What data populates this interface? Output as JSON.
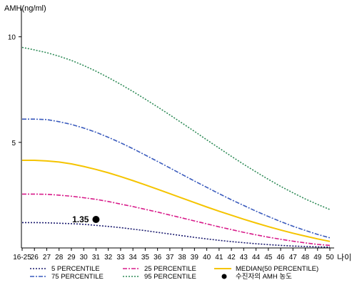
{
  "chart_data": {
    "type": "line",
    "ylabel": "AMH(ng/ml)",
    "xlabel": "나이",
    "y_ticks": [
      5,
      10
    ],
    "ylim": [
      0,
      11
    ],
    "grid": false,
    "legend_position": "bottom",
    "x": [
      "16-25",
      "26",
      "27",
      "28",
      "29",
      "30",
      "31",
      "32",
      "33",
      "34",
      "35",
      "36",
      "37",
      "38",
      "39",
      "40",
      "41",
      "42",
      "43",
      "44",
      "45",
      "46",
      "47",
      "48",
      "49",
      "50"
    ],
    "series": [
      {
        "name": "5 PERCENTILE",
        "color": "#1a1a6e",
        "dash": "2,2",
        "values": [
          1.2,
          1.2,
          1.19,
          1.17,
          1.15,
          1.12,
          1.07,
          1.02,
          0.96,
          0.89,
          0.82,
          0.74,
          0.66,
          0.58,
          0.5,
          0.43,
          0.36,
          0.3,
          0.25,
          0.2,
          0.16,
          0.12,
          0.09,
          0.07,
          0.05,
          0.04
        ]
      },
      {
        "name": "25 PERCENTILE",
        "color": "#d81b8a",
        "dash": "6,2,2,2",
        "values": [
          2.55,
          2.55,
          2.54,
          2.5,
          2.45,
          2.38,
          2.3,
          2.2,
          2.08,
          1.96,
          1.83,
          1.7,
          1.56,
          1.42,
          1.28,
          1.14,
          1.0,
          0.87,
          0.74,
          0.62,
          0.51,
          0.41,
          0.32,
          0.24,
          0.17,
          0.12
        ]
      },
      {
        "name": "MEDIAN(50 PERCENTILE)",
        "color": "#f5c400",
        "dash": "",
        "values": [
          4.15,
          4.15,
          4.12,
          4.07,
          3.98,
          3.86,
          3.72,
          3.56,
          3.38,
          3.19,
          2.99,
          2.78,
          2.57,
          2.36,
          2.15,
          1.94,
          1.74,
          1.55,
          1.36,
          1.18,
          1.01,
          0.85,
          0.7,
          0.56,
          0.43,
          0.31
        ]
      },
      {
        "name": "75 PERCENTILE",
        "color": "#3a5bbd",
        "dash": "6,2,2,2",
        "values": [
          6.1,
          6.1,
          6.08,
          5.98,
          5.85,
          5.68,
          5.48,
          5.24,
          4.98,
          4.7,
          4.4,
          4.1,
          3.79,
          3.48,
          3.17,
          2.87,
          2.57,
          2.28,
          2.01,
          1.74,
          1.49,
          1.25,
          1.03,
          0.83,
          0.64,
          0.48
        ]
      },
      {
        "name": "95 PERCENTILE",
        "color": "#2e8b57",
        "dash": "2,2",
        "values": [
          9.5,
          9.38,
          9.25,
          9.08,
          8.88,
          8.64,
          8.37,
          8.07,
          7.75,
          7.41,
          7.05,
          6.68,
          6.3,
          5.91,
          5.52,
          5.12,
          4.73,
          4.34,
          3.96,
          3.6,
          3.25,
          2.92,
          2.61,
          2.32,
          2.06,
          1.82
        ]
      }
    ],
    "marker": {
      "name": "수진자의 AMH 농도",
      "x": "31",
      "y": 1.35,
      "label": "1.35"
    }
  }
}
